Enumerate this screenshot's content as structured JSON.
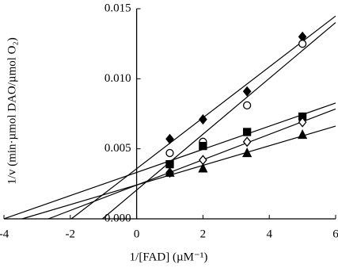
{
  "chart_data": {
    "type": "scatter",
    "xlabel": "1/[FAD] (µM⁻¹)",
    "ylabel": "1/v (min·µmol DAO/µmol O₂)",
    "xlim": [
      -4,
      6
    ],
    "ylim": [
      0,
      0.015
    ],
    "xticks": [
      -4,
      -2,
      0,
      2,
      4,
      6
    ],
    "yticks": [
      {
        "value": 0,
        "label": "0.000"
      },
      {
        "value": 0.005,
        "label": "0.005"
      },
      {
        "value": 0.01,
        "label": "0.010"
      },
      {
        "value": 0.015,
        "label": "0.015"
      }
    ],
    "trendlines": true,
    "series": [
      {
        "marker": "diamond",
        "color": "#000000",
        "x": [
          1,
          2,
          3.33,
          5
        ],
        "values": [
          0.0057,
          0.0071,
          0.0091,
          0.013
        ]
      },
      {
        "marker": "circle-open",
        "color": "#000000",
        "x": [
          1,
          2,
          3.33,
          5
        ],
        "values": [
          0.0047,
          0.0055,
          0.0081,
          0.0125
        ]
      },
      {
        "marker": "square",
        "color": "#000000",
        "x": [
          1,
          2,
          3.33,
          5
        ],
        "values": [
          0.0039,
          0.0052,
          0.0062,
          0.0073
        ]
      },
      {
        "marker": "diamond-open",
        "color": "#000000",
        "x": [
          1,
          2,
          3.33,
          5
        ],
        "values": [
          0.0033,
          0.0042,
          0.0055,
          0.0069
        ]
      },
      {
        "marker": "triangle",
        "color": "#000000",
        "x": [
          1,
          2,
          3.33,
          5
        ],
        "values": [
          0.0033,
          0.0036,
          0.0047,
          0.006
        ]
      }
    ]
  }
}
